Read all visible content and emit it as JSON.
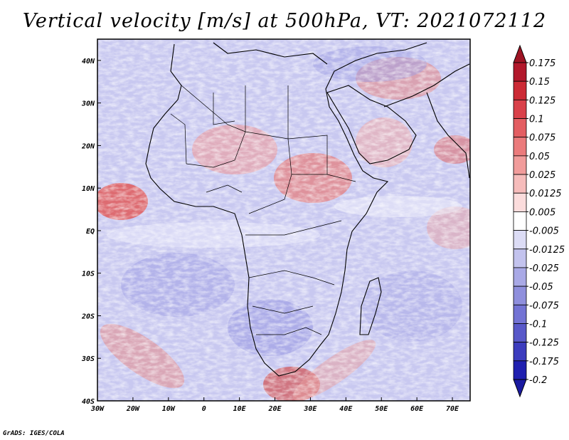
{
  "title": "Vertical velocity [m/s] at 500hPa, VT: 2021072112",
  "credit": "GrADS: IGES/COLA",
  "map": {
    "lon_range": [
      -30,
      75
    ],
    "lat_range": [
      -40,
      45
    ],
    "lon_ticks": [
      "30W",
      "20W",
      "10W",
      "0",
      "10E",
      "20E",
      "30E",
      "40E",
      "50E",
      "60E",
      "70E"
    ],
    "lat_ticks": [
      "40N",
      "30N",
      "20N",
      "10N",
      "EQ",
      "10S",
      "20S",
      "30S",
      "40S"
    ]
  },
  "colorbar": {
    "levels": [
      "0.175",
      "0.15",
      "0.125",
      "0.1",
      "0.075",
      "0.05",
      "0.025",
      "0.0125",
      "0.005",
      "-0.005",
      "-0.0125",
      "-0.025",
      "-0.05",
      "-0.075",
      "-0.1",
      "-0.125",
      "-0.175",
      "-0.2"
    ],
    "colors": [
      "#b2182b",
      "#cc2a35",
      "#d9414a",
      "#e35e62",
      "#eb7b7c",
      "#f19c9b",
      "#f6bcbb",
      "#fbdcdc",
      "#ffffff",
      "#dcdcf5",
      "#c3c3ee",
      "#a9a9e6",
      "#8f8fdd",
      "#7373d4",
      "#5858c9",
      "#3c3cbe",
      "#2020b0"
    ],
    "top_color": "#9e1424",
    "bottom_color": "#1a1aa0"
  }
}
